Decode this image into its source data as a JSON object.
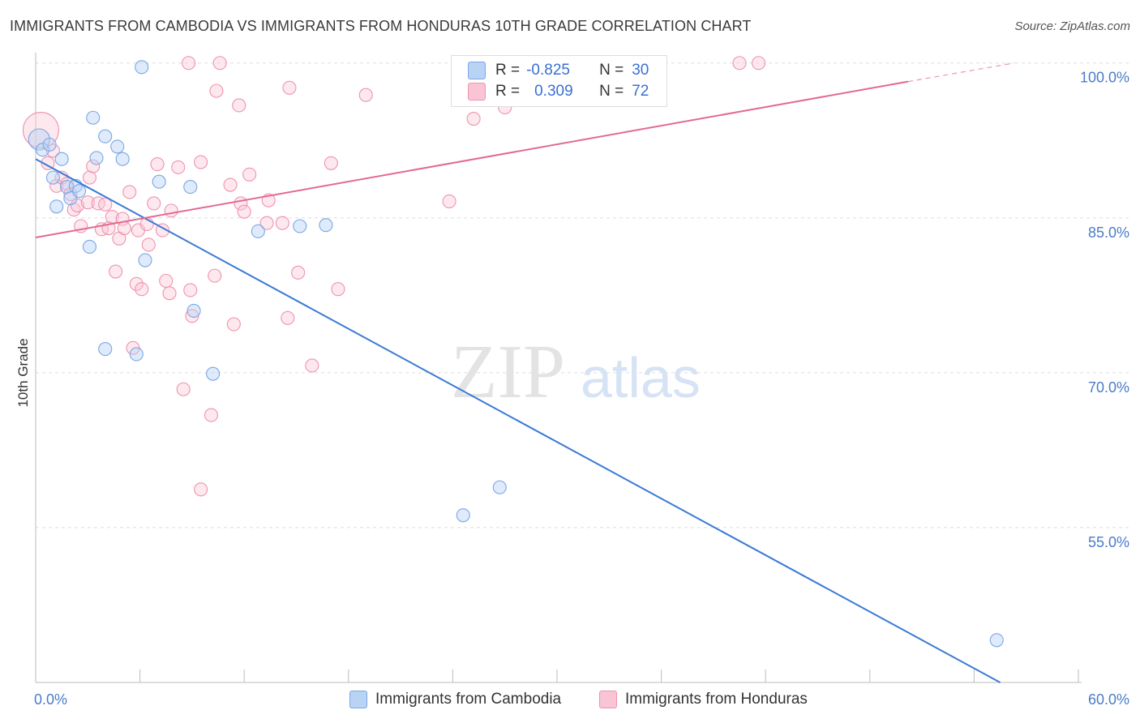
{
  "title": "IMMIGRANTS FROM CAMBODIA VS IMMIGRANTS FROM HONDURAS 10TH GRADE CORRELATION CHART",
  "source": "Source: ZipAtlas.com",
  "watermark": {
    "zip": "ZIP",
    "atlas": "atlas"
  },
  "legend": {
    "r_label": "R =",
    "n_label": "N =",
    "rows": [
      {
        "r": "-0.825",
        "n": "30",
        "fill": "#b9d3f5",
        "stroke": "#7aa7e6"
      },
      {
        "r": "0.309",
        "n": "72",
        "fill": "#f9c5d5",
        "stroke": "#ee93b0"
      }
    ]
  },
  "bottom_legend": [
    "Immigrants from Cambodia",
    "Immigrants from Honduras"
  ],
  "chart_data": {
    "type": "scatter",
    "title": "IMMIGRANTS FROM CAMBODIA VS IMMIGRANTS FROM HONDURAS 10TH GRADE CORRELATION CHART",
    "xlabel": "",
    "ylabel": "10th Grade",
    "xlim": [
      0,
      60
    ],
    "ylim": [
      40,
      101
    ],
    "x_tick_labels": [
      "0.0%",
      "60.0%"
    ],
    "y_ticks": [
      55,
      70,
      85,
      100
    ],
    "y_tick_labels": [
      "55.0%",
      "70.0%",
      "85.0%",
      "100.0%"
    ],
    "grid": true,
    "series": [
      {
        "name": "Immigrants from Cambodia",
        "color": "#7aa7e6",
        "line_color": "#3a7bd5",
        "trend": {
          "x0": 0,
          "y0": 90.7,
          "x1": 55.5,
          "y1": 40
        },
        "points": [
          [
            0.2,
            92.6
          ],
          [
            0.4,
            91.6
          ],
          [
            0.8,
            92.1
          ],
          [
            1.0,
            88.9
          ],
          [
            1.2,
            86.1
          ],
          [
            1.5,
            90.7
          ],
          [
            1.8,
            88.0
          ],
          [
            2.0,
            86.9
          ],
          [
            2.3,
            88.1
          ],
          [
            2.5,
            87.6
          ],
          [
            3.1,
            82.2
          ],
          [
            3.3,
            94.7
          ],
          [
            3.5,
            90.8
          ],
          [
            4.0,
            92.9
          ],
          [
            4.0,
            72.3
          ],
          [
            4.7,
            91.9
          ],
          [
            5.0,
            90.7
          ],
          [
            5.8,
            71.8
          ],
          [
            6.1,
            99.6
          ],
          [
            6.3,
            80.9
          ],
          [
            7.1,
            88.5
          ],
          [
            8.9,
            88.0
          ],
          [
            9.1,
            76.0
          ],
          [
            10.2,
            69.9
          ],
          [
            12.8,
            83.7
          ],
          [
            15.2,
            84.2
          ],
          [
            16.7,
            84.3
          ],
          [
            24.6,
            56.2
          ],
          [
            26.7,
            58.9
          ],
          [
            55.3,
            44.1
          ]
        ]
      },
      {
        "name": "Immigrants from Honduras",
        "color": "#ee93b0",
        "line_color": "#e26a92",
        "trend": {
          "x0": 0,
          "y0": 83.1,
          "x1": 50.2,
          "y1": 98.2
        },
        "trend_dashed": {
          "x0": 50.2,
          "y0": 98.2,
          "x1": 56.3,
          "y1": 100
        },
        "points": [
          [
            0.3,
            93.5
          ],
          [
            0.7,
            90.3
          ],
          [
            1.0,
            91.5
          ],
          [
            1.2,
            88.1
          ],
          [
            1.5,
            88.9
          ],
          [
            1.8,
            88.3
          ],
          [
            2.0,
            87.3
          ],
          [
            2.2,
            85.8
          ],
          [
            2.4,
            86.2
          ],
          [
            2.6,
            84.2
          ],
          [
            3.0,
            86.5
          ],
          [
            3.1,
            88.9
          ],
          [
            3.3,
            90.0
          ],
          [
            3.6,
            86.4
          ],
          [
            3.8,
            83.9
          ],
          [
            4.0,
            86.3
          ],
          [
            4.2,
            84.0
          ],
          [
            4.4,
            85.1
          ],
          [
            4.6,
            79.8
          ],
          [
            4.8,
            83.0
          ],
          [
            5.0,
            84.9
          ],
          [
            5.1,
            84.0
          ],
          [
            5.4,
            87.5
          ],
          [
            5.6,
            72.4
          ],
          [
            5.8,
            78.6
          ],
          [
            5.9,
            83.8
          ],
          [
            6.1,
            78.1
          ],
          [
            6.4,
            84.4
          ],
          [
            6.5,
            82.4
          ],
          [
            6.8,
            86.4
          ],
          [
            7.0,
            90.2
          ],
          [
            7.3,
            83.8
          ],
          [
            7.5,
            78.9
          ],
          [
            7.7,
            77.7
          ],
          [
            7.8,
            85.7
          ],
          [
            8.2,
            89.9
          ],
          [
            8.5,
            68.4
          ],
          [
            8.8,
            100.0
          ],
          [
            8.9,
            78.0
          ],
          [
            9.0,
            75.5
          ],
          [
            9.5,
            58.7
          ],
          [
            9.5,
            90.4
          ],
          [
            10.1,
            65.9
          ],
          [
            10.3,
            79.4
          ],
          [
            10.4,
            97.3
          ],
          [
            10.6,
            100.0
          ],
          [
            11.2,
            88.2
          ],
          [
            11.4,
            74.7
          ],
          [
            11.7,
            95.9
          ],
          [
            11.8,
            86.4
          ],
          [
            12.0,
            85.6
          ],
          [
            12.3,
            89.2
          ],
          [
            13.3,
            84.5
          ],
          [
            13.4,
            86.7
          ],
          [
            14.2,
            84.5
          ],
          [
            14.5,
            75.3
          ],
          [
            14.6,
            97.6
          ],
          [
            15.1,
            79.7
          ],
          [
            15.9,
            70.7
          ],
          [
            17.0,
            90.3
          ],
          [
            17.4,
            78.1
          ],
          [
            19.0,
            96.9
          ],
          [
            23.8,
            86.6
          ],
          [
            24.3,
            100.0
          ],
          [
            24.6,
            100.0
          ],
          [
            25.2,
            94.6
          ],
          [
            27.0,
            95.7
          ],
          [
            28.2,
            100.0
          ],
          [
            28.5,
            100.0
          ],
          [
            29.5,
            96.8
          ],
          [
            40.5,
            100.0
          ],
          [
            41.6,
            100.0
          ]
        ]
      }
    ]
  }
}
